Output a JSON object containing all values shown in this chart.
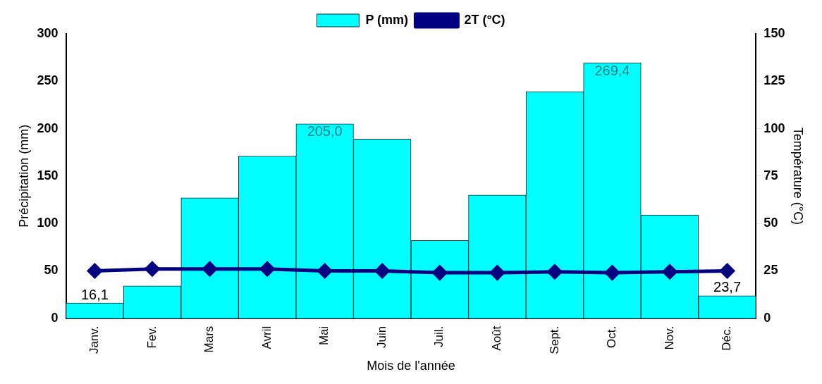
{
  "chart_data": {
    "type": "bar",
    "xlabel": "Mois de l'année",
    "ylabel": "Précipitation (mm)",
    "y2label": "Température (°C)",
    "categories": [
      "Janv.",
      "Fev.",
      "Mars",
      "Avril",
      "Mai",
      "Juin",
      "Juil.",
      "Août",
      "Sept.",
      "Oct.",
      "Nov.",
      "Déc."
    ],
    "series": [
      {
        "name": "P (mm)",
        "color": "#00ffff",
        "values": [
          16.1,
          34,
          127,
          171,
          205.0,
          189,
          82,
          130,
          239,
          269.4,
          109,
          23.7
        ],
        "value_labels": [
          "16,1",
          null,
          null,
          null,
          "205,0",
          null,
          null,
          null,
          null,
          "269,4",
          null,
          "23,7"
        ]
      },
      {
        "name": "2T (°C)",
        "type": "line",
        "axis": "y2",
        "color": "#000080",
        "marker": "diamond",
        "values": [
          25,
          26,
          26,
          26,
          25,
          25,
          24,
          24,
          24.5,
          24,
          24.5,
          25
        ]
      }
    ],
    "ylim": [
      0,
      300
    ],
    "yticks": [
      0,
      50,
      100,
      150,
      200,
      250,
      300
    ],
    "y2lim": [
      0,
      150
    ],
    "y2ticks": [
      0,
      25,
      50,
      75,
      100,
      125,
      150
    ],
    "grid": false,
    "legend": "top"
  }
}
